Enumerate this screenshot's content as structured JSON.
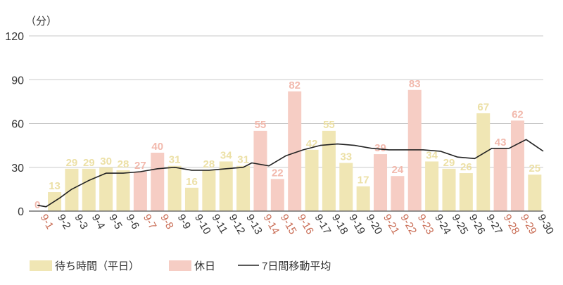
{
  "chart_data": {
    "type": "bar",
    "unit_label": "（分）",
    "y_ticks": [
      0,
      30,
      60,
      90,
      120
    ],
    "ylim": [
      0,
      120
    ],
    "grid": true,
    "categories": [
      "9-1",
      "9-2",
      "9-3",
      "9-4",
      "9-5",
      "9-6",
      "9-7",
      "9-8",
      "9-9",
      "9-10",
      "9-11",
      "9-12",
      "9-13",
      "9-14",
      "9-15",
      "9-16",
      "9-17",
      "9-18",
      "9-19",
      "9-20",
      "9-21",
      "9-22",
      "9-23",
      "9-24",
      "9-25",
      "9-26",
      "9-27",
      "9-28",
      "9-29",
      "9-30"
    ],
    "values": [
      0,
      13,
      29,
      29,
      30,
      28,
      27,
      40,
      31,
      16,
      28,
      34,
      31,
      55,
      22,
      82,
      42,
      55,
      33,
      17,
      39,
      24,
      83,
      34,
      29,
      26,
      67,
      43,
      62,
      25
    ],
    "day_type": [
      "holiday",
      "weekday",
      "weekday",
      "weekday",
      "weekday",
      "weekday",
      "holiday",
      "holiday",
      "weekday",
      "weekday",
      "weekday",
      "weekday",
      "weekday",
      "holiday",
      "holiday",
      "holiday",
      "weekday",
      "weekday",
      "weekday",
      "weekday",
      "holiday",
      "holiday",
      "holiday",
      "weekday",
      "weekday",
      "weekday",
      "weekday",
      "holiday",
      "holiday",
      "weekday"
    ],
    "moving_average": [
      4,
      3,
      9,
      15,
      21,
      26,
      26,
      27,
      29,
      30,
      28,
      28,
      29,
      30,
      33,
      31,
      38,
      42,
      45,
      46,
      45,
      43,
      42,
      42,
      42,
      41,
      37,
      36,
      43,
      43,
      49,
      41
    ],
    "moving_average_x": [
      0.5,
      1,
      1.8,
      2.5,
      3.5,
      4.5,
      5.5,
      6.5,
      7.5,
      8.5,
      9.5,
      10.5,
      11.5,
      12.5,
      13,
      14,
      15,
      16,
      17,
      18,
      19,
      20,
      21,
      22,
      23,
      24,
      25,
      26,
      27,
      28,
      29,
      30
    ],
    "legend": {
      "weekday": "待ち時間（平日）",
      "holiday": "休日",
      "moving_average": "7日間移動平均",
      "placement": "bottom-left"
    },
    "colors": {
      "weekday_bar": "#f0e6b4",
      "weekday_label": "#ece0a6",
      "holiday_bar": "#f6cdc4",
      "holiday_label": "#f2b9ad",
      "line": "#222222",
      "weekday_category_text": "#333333",
      "holiday_category_text": "#c86a52"
    }
  }
}
